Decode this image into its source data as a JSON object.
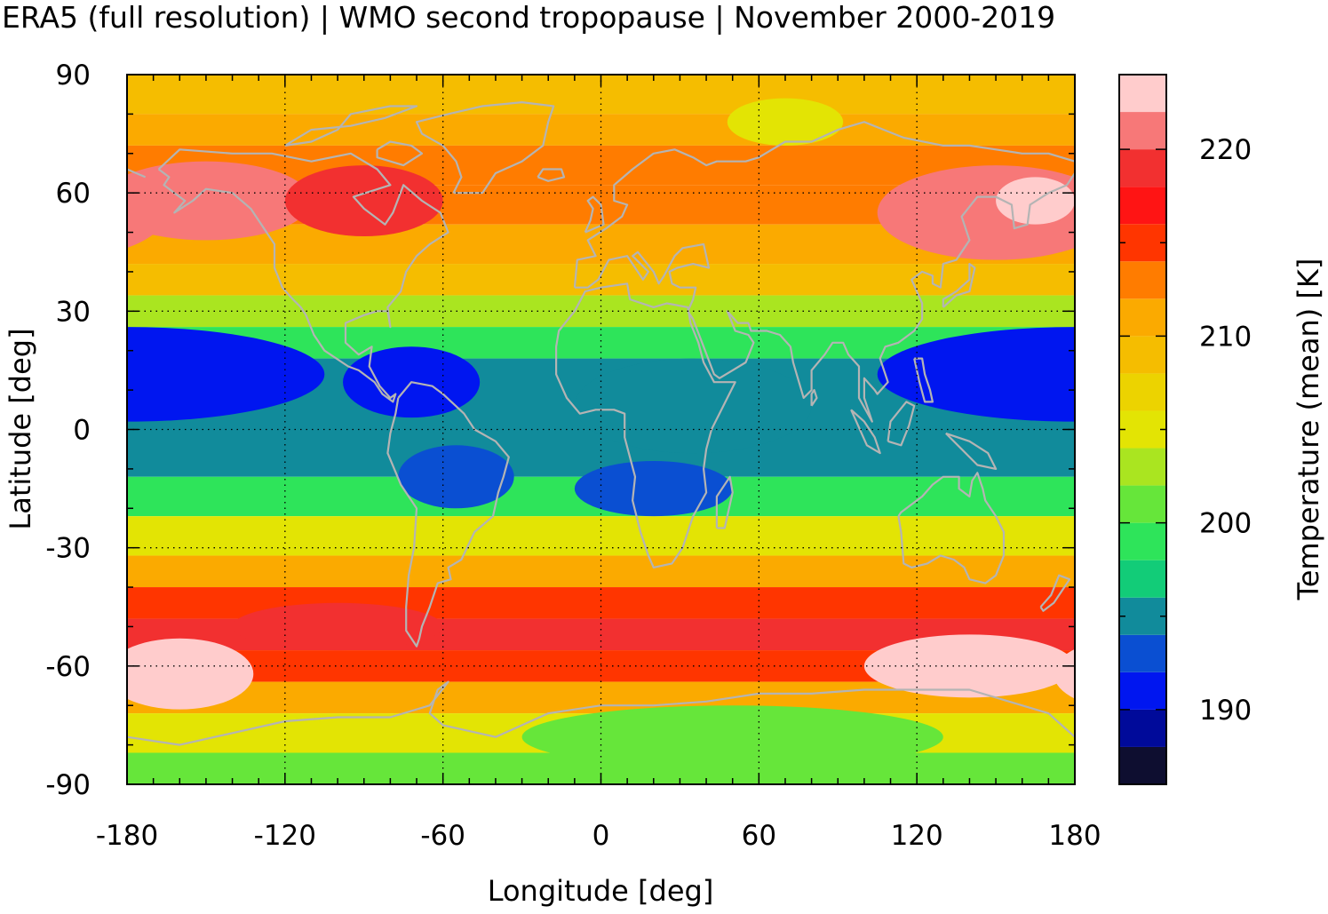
{
  "title": "ERA5 (full resolution) | WMO second tropopause | November 2000-2019",
  "chart_data": {
    "type": "heatmap",
    "title": "ERA5 (full resolution) | WMO second tropopause | November 2000-2019",
    "xlabel": "Longitude [deg]",
    "ylabel": "Latitude [deg]",
    "xlim": [
      -180,
      180
    ],
    "ylim": [
      -90,
      90
    ],
    "x_ticks": [
      -180,
      -120,
      -60,
      0,
      60,
      120,
      180
    ],
    "y_ticks": [
      90,
      60,
      30,
      0,
      -30,
      -60,
      -90
    ],
    "grid": true,
    "coastlines": true,
    "coastline_color": "#b4b4b4",
    "colorbar": {
      "label": "Temperature (mean) [K]",
      "ticks": [
        220,
        210,
        200,
        190
      ],
      "range": [
        186,
        224
      ],
      "step": 2,
      "colors": [
        "#0e0e30",
        "#000a9a",
        "#0016f0",
        "#0a4fd2",
        "#118b9b",
        "#12cc78",
        "#2ee45a",
        "#66e63a",
        "#aae520",
        "#e3e404",
        "#ecd300",
        "#f5bd00",
        "#fbaa00",
        "#ff7c00",
        "#ff3500",
        "#ff1414",
        "#f23030",
        "#f77878",
        "#ffcccc"
      ]
    },
    "field_bands": [
      {
        "lat": [
          90,
          80
        ],
        "k": 208.5
      },
      {
        "lat": [
          80,
          72
        ],
        "k": 211
      },
      {
        "lat": [
          72,
          62
        ],
        "k": 212
      },
      {
        "lat": [
          62,
          52
        ],
        "k": 212.5
      },
      {
        "lat": [
          52,
          42
        ],
        "k": 211
      },
      {
        "lat": [
          42,
          34
        ],
        "k": 208
      },
      {
        "lat": [
          34,
          26
        ],
        "k": 203
      },
      {
        "lat": [
          26,
          18
        ],
        "k": 198
      },
      {
        "lat": [
          18,
          -12
        ],
        "k": 194
      },
      {
        "lat": [
          -12,
          -22
        ],
        "k": 199
      },
      {
        "lat": [
          -22,
          -32
        ],
        "k": 205
      },
      {
        "lat": [
          -32,
          -40
        ],
        "k": 210
      },
      {
        "lat": [
          -40,
          -48
        ],
        "k": 215
      },
      {
        "lat": [
          -48,
          -56
        ],
        "k": 218
      },
      {
        "lat": [
          -56,
          -64
        ],
        "k": 214
      },
      {
        "lat": [
          -64,
          -72
        ],
        "k": 210
      },
      {
        "lat": [
          -72,
          -82
        ],
        "k": 205
      },
      {
        "lat": [
          -82,
          -90
        ],
        "k": 200
      }
    ],
    "field_blobs": [
      {
        "lon": 180,
        "lat": 14,
        "rlon": 75,
        "rlat": 12,
        "k": 191
      },
      {
        "lon": -72,
        "lat": 12,
        "rlon": 26,
        "rlat": 9,
        "k": 191
      },
      {
        "lon": -55,
        "lat": -12,
        "rlon": 22,
        "rlat": 8,
        "k": 192
      },
      {
        "lon": 20,
        "lat": -15,
        "rlon": 30,
        "rlat": 7,
        "k": 192
      },
      {
        "lon": 35,
        "lat": 6,
        "rlon": 45,
        "rlat": 12,
        "k": 195
      },
      {
        "lon": -150,
        "lat": 58,
        "rlon": 40,
        "rlat": 10,
        "k": 220
      },
      {
        "lon": -90,
        "lat": 58,
        "rlon": 30,
        "rlat": 9,
        "k": 219
      },
      {
        "lon": 150,
        "lat": 55,
        "rlon": 45,
        "rlat": 12,
        "k": 220
      },
      {
        "lon": 165,
        "lat": 58,
        "rlon": 15,
        "rlat": 6,
        "k": 222
      },
      {
        "lon": 70,
        "lat": 78,
        "rlon": 22,
        "rlat": 6,
        "k": 204
      },
      {
        "lon": -160,
        "lat": -62,
        "rlon": 28,
        "rlat": 9,
        "k": 224
      },
      {
        "lon": 140,
        "lat": -60,
        "rlon": 40,
        "rlat": 8,
        "k": 224
      },
      {
        "lon": 50,
        "lat": -78,
        "rlon": 80,
        "rlat": 8,
        "k": 201
      },
      {
        "lon": -100,
        "lat": -50,
        "rlon": 40,
        "rlat": 6,
        "k": 219
      }
    ]
  }
}
